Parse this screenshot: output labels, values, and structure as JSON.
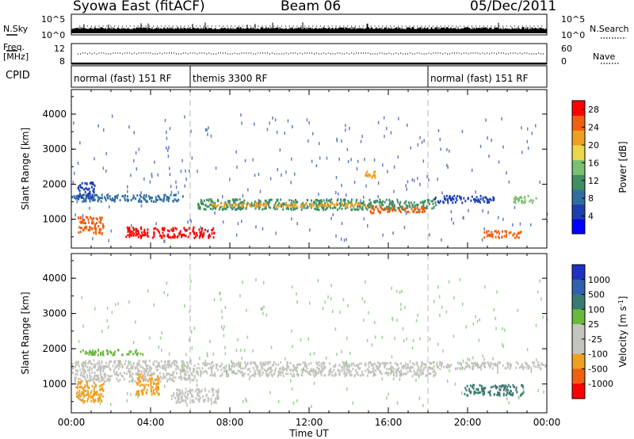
{
  "header": {
    "station": "Syowa East (fitACF)",
    "beam": "Beam 06",
    "date": "05/Dec/2011"
  },
  "strip_labels": {
    "nsky": "N.Sky",
    "freq_line1": "Freq.",
    "freq_line2": "[MHz]",
    "cpid": "CPID",
    "nsearch": "N.Search",
    "nave": "Nave",
    "nsky_top": "10^5",
    "nsky_bottom": "10^0",
    "freq_top": "12",
    "freq_bottom": "8",
    "nave_top": "60",
    "nave_bottom": "0"
  },
  "cpid_segments": [
    {
      "label": "normal (fast) 151 RF",
      "start_hour": 0
    },
    {
      "label": "themis 3300 RF",
      "start_hour": 6
    },
    {
      "label": "normal (fast) 151 RF",
      "start_hour": 18
    }
  ],
  "colors": {
    "power_scale": [
      "#0000ff",
      "#1c3fb0",
      "#2f6fa0",
      "#3f8f5f",
      "#7ac070",
      "#e8d84a",
      "#f0a020",
      "#f06010",
      "#ff0000"
    ],
    "velocity_scale": [
      "#2030c0",
      "#3060b0",
      "#3a7a70",
      "#6ab83c",
      "#c4c4be",
      "#c4c4be",
      "#f0a020",
      "#f06010",
      "#ff0000"
    ],
    "ground_scatter": "#c4c4be"
  },
  "chart_data": [
    {
      "type": "heatmap",
      "panel": "power",
      "ylabel": "Slant Range [km]",
      "yticks": [
        "1000",
        "2000",
        "3000",
        "4000"
      ],
      "ylim": [
        180,
        4700
      ],
      "xlim": [
        0,
        24
      ],
      "colorbar_label": "Power [dB]",
      "colorbar_ticks": [
        "4",
        "8",
        "12",
        "16",
        "20",
        "24",
        "28"
      ],
      "colorbar_range": [
        0,
        30
      ],
      "bands": [
        {
          "x0": 0.0,
          "x1": 5.6,
          "y0": 1530,
          "y1": 1730,
          "value": 7
        },
        {
          "x0": 6.3,
          "x1": 18.4,
          "y0": 1300,
          "y1": 1600,
          "value": 12
        },
        {
          "x0": 7.0,
          "x1": 15.0,
          "y0": 1380,
          "y1": 1500,
          "value": 20
        },
        {
          "x0": 15.0,
          "x1": 17.8,
          "y0": 1200,
          "y1": 1400,
          "value": 24
        },
        {
          "x0": 2.7,
          "x1": 7.2,
          "y0": 500,
          "y1": 800,
          "value": 28
        },
        {
          "x0": 0.3,
          "x1": 1.6,
          "y0": 600,
          "y1": 1100,
          "value": 26
        },
        {
          "x0": 18.3,
          "x1": 21.3,
          "y0": 1500,
          "y1": 1700,
          "value": 5
        },
        {
          "x0": 20.8,
          "x1": 22.8,
          "y0": 500,
          "y1": 700,
          "value": 26
        },
        {
          "x0": 22.3,
          "x1": 23.5,
          "y0": 1500,
          "y1": 1700,
          "value": 14
        },
        {
          "x0": 0.3,
          "x1": 1.2,
          "y0": 1600,
          "y1": 2100,
          "value": 5
        },
        {
          "x0": 14.8,
          "x1": 15.3,
          "y0": 2200,
          "y1": 2400,
          "value": 20
        }
      ]
    },
    {
      "type": "heatmap",
      "panel": "velocity",
      "ylabel": "Slant Range [km]",
      "xlabel": "Time UT",
      "yticks": [
        "1000",
        "2000",
        "3000",
        "4000"
      ],
      "ylim": [
        180,
        4700
      ],
      "xticks": [
        "00:00",
        "04:00",
        "08:00",
        "12:00",
        "16:00",
        "20:00",
        "00:00"
      ],
      "xlim": [
        0,
        24
      ],
      "colorbar_label": "Velocity [m s",
      "colorbar_unit_sup": "-1",
      "colorbar_ticks": [
        "1000",
        "500",
        "100",
        "25",
        "-25",
        "-100",
        "-500",
        "-1000"
      ],
      "bands": [
        {
          "x0": 0.0,
          "x1": 6.2,
          "y0": 1100,
          "y1": 1700,
          "value": 0
        },
        {
          "x0": 6.3,
          "x1": 18.4,
          "y0": 1250,
          "y1": 1650,
          "value": 0
        },
        {
          "x0": 0.2,
          "x1": 1.6,
          "y0": 500,
          "y1": 1100,
          "value": -300
        },
        {
          "x0": 3.2,
          "x1": 4.4,
          "y0": 700,
          "y1": 1300,
          "value": -200
        },
        {
          "x0": 0.4,
          "x1": 3.6,
          "y0": 1850,
          "y1": 2000,
          "value": 80
        },
        {
          "x0": 19.8,
          "x1": 22.8,
          "y0": 700,
          "y1": 1000,
          "value": 300
        },
        {
          "x0": 18.4,
          "x1": 23.9,
          "y0": 1450,
          "y1": 1650,
          "value": 0
        },
        {
          "x0": 5.0,
          "x1": 7.4,
          "y0": 500,
          "y1": 900,
          "value": 0
        }
      ]
    }
  ]
}
